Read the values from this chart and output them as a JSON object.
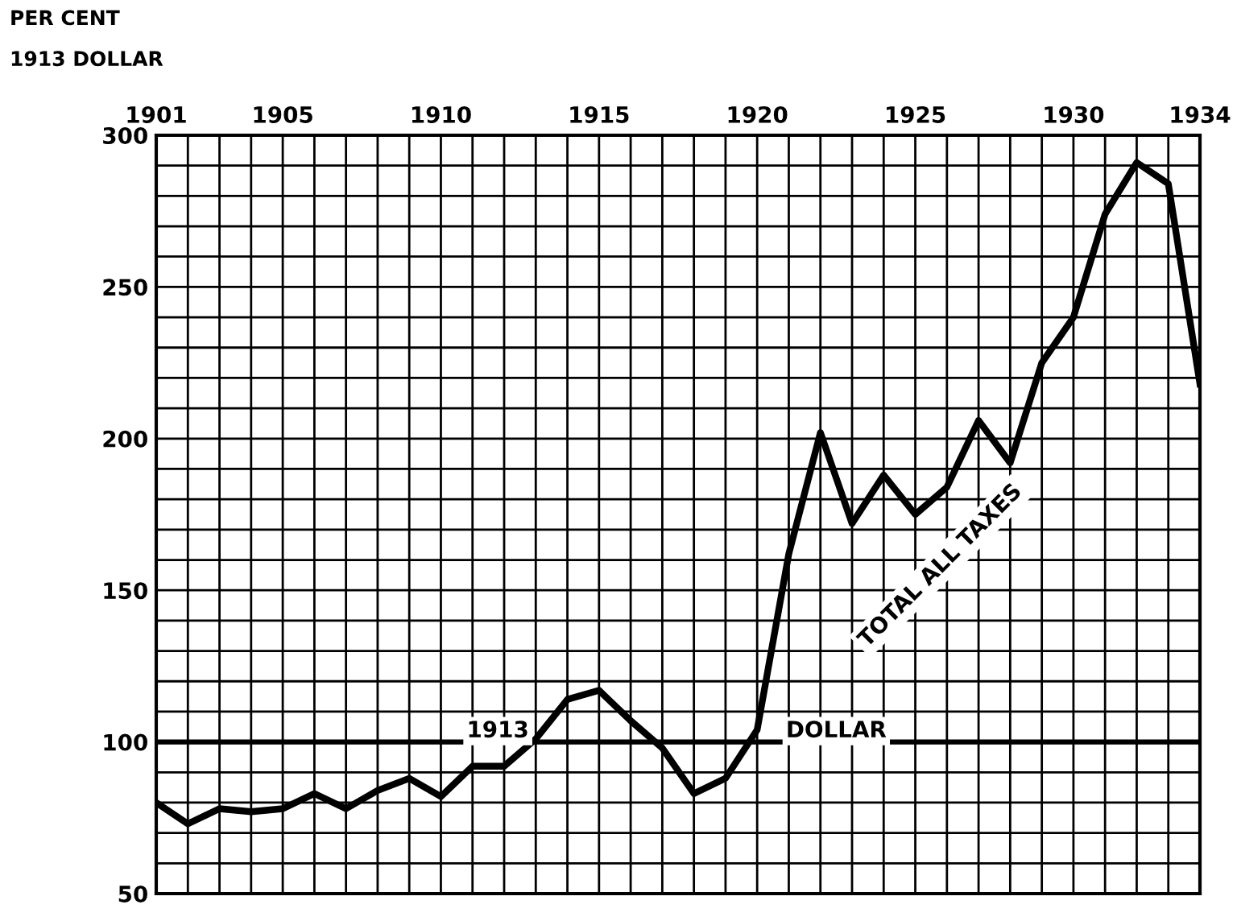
{
  "chart_data": {
    "type": "line",
    "ylabel": "PER CENT\n1913 DOLLAR",
    "x": [
      1901,
      1902,
      1903,
      1904,
      1905,
      1906,
      1907,
      1908,
      1909,
      1910,
      1911,
      1912,
      1913,
      1914,
      1915,
      1916,
      1917,
      1918,
      1919,
      1920,
      1921,
      1922,
      1923,
      1924,
      1925,
      1926,
      1927,
      1928,
      1929,
      1930,
      1931,
      1932,
      1933,
      1934
    ],
    "series": [
      {
        "name": "TOTAL ALL TAXES",
        "color": "#000000",
        "values": [
          80,
          73,
          78,
          77,
          78,
          83,
          78,
          84,
          88,
          82,
          92,
          92,
          101,
          114,
          117,
          107,
          98,
          83,
          88,
          104,
          162,
          202,
          172,
          188,
          175,
          184,
          206,
          192,
          225,
          240,
          274,
          291,
          284,
          218
        ]
      }
    ],
    "xlim": [
      1901,
      1934
    ],
    "ylim": [
      50,
      300
    ],
    "xticks": [
      1901,
      {
        "value": 1902,
        "label": null
      },
      {
        "value": 1903,
        "label": null
      },
      {
        "value": 1904,
        "label": null
      },
      1905,
      {
        "value": 1906,
        "label": null
      },
      {
        "value": 1907,
        "label": null
      },
      {
        "value": 1908,
        "label": null
      },
      {
        "value": 1909,
        "label": null
      },
      1910,
      {
        "value": 1911,
        "label": null
      },
      {
        "value": 1912,
        "label": null
      },
      {
        "value": 1913,
        "label": null
      },
      {
        "value": 1914,
        "label": null
      },
      1915,
      {
        "value": 1916,
        "label": null
      },
      {
        "value": 1917,
        "label": null
      },
      {
        "value": 1918,
        "label": null
      },
      {
        "value": 1919,
        "label": null
      },
      1920,
      {
        "value": 1921,
        "label": null
      },
      {
        "value": 1922,
        "label": null
      },
      {
        "value": 1923,
        "label": null
      },
      {
        "value": 1924,
        "label": null
      },
      1925,
      {
        "value": 1926,
        "label": null
      },
      {
        "value": 1927,
        "label": null
      },
      {
        "value": 1928,
        "label": null
      },
      {
        "value": 1929,
        "label": null
      },
      1930,
      {
        "value": 1931,
        "label": null
      },
      {
        "value": 1932,
        "label": null
      },
      {
        "value": 1933,
        "label": null
      },
      1934
    ],
    "yticks": [
      50,
      {
        "value": 60,
        "label": null
      },
      {
        "value": 70,
        "label": null
      },
      {
        "value": 80,
        "label": null
      },
      {
        "value": 90,
        "label": null
      },
      100,
      {
        "value": 110,
        "label": null
      },
      {
        "value": 120,
        "label": null
      },
      {
        "value": 130,
        "label": null
      },
      {
        "value": 140,
        "label": null
      },
      150,
      {
        "value": 160,
        "label": null
      },
      {
        "value": 170,
        "label": null
      },
      {
        "value": 180,
        "label": null
      },
      {
        "value": 190,
        "label": null
      },
      200,
      {
        "value": 210,
        "label": null
      },
      {
        "value": 220,
        "label": null
      },
      {
        "value": 230,
        "label": null
      },
      {
        "value": 240,
        "label": null
      },
      250,
      {
        "value": 260,
        "label": null
      },
      {
        "value": 270,
        "label": null
      },
      {
        "value": 280,
        "label": null
      },
      {
        "value": 290,
        "label": null
      },
      300
    ],
    "grid": true,
    "marker": "none",
    "line_style": "solid",
    "ref_lines": [
      {
        "axis": "y",
        "value": 100
      }
    ],
    "annotations": [
      {
        "text": "1913",
        "x": 1911.8,
        "y": 100
      },
      {
        "text": "DOLLAR",
        "x": 1922.5,
        "y": 100
      }
    ]
  }
}
